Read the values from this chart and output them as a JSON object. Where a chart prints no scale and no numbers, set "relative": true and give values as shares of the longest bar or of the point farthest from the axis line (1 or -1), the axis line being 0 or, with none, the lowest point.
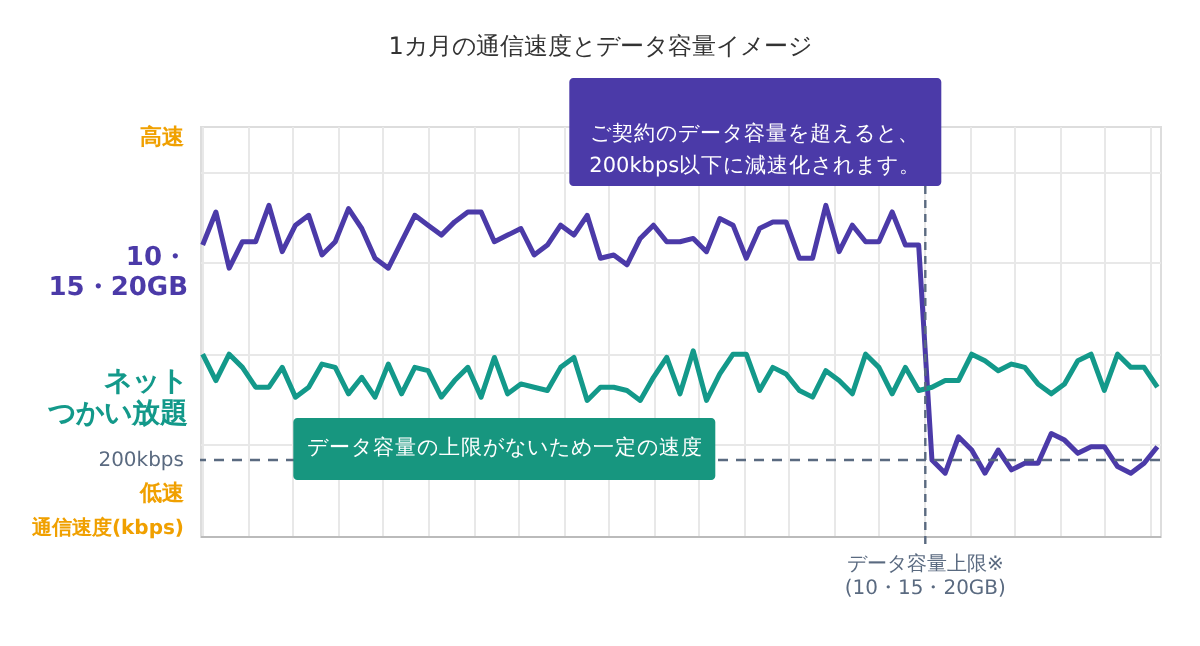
{
  "chart_data": {
    "type": "line",
    "relative": true,
    "title": "1カ月の通信速度とデータ容量イメージ",
    "ylabel": "通信速度(kbps)",
    "categories": [
      null,
      null,
      null,
      null,
      null,
      null,
      null,
      null,
      null,
      null,
      null,
      null,
      null,
      null,
      null,
      null,
      null,
      null,
      null,
      null,
      null,
      null,
      null,
      null,
      null,
      null,
      null,
      null,
      null,
      null,
      null,
      null,
      null,
      null,
      null,
      null,
      null,
      null,
      null,
      null,
      null,
      null,
      null,
      null,
      null,
      null,
      null,
      null,
      null,
      null,
      null,
      null,
      null,
      null,
      null,
      null,
      null,
      null,
      null,
      null,
      null,
      null,
      null,
      null,
      null,
      null,
      null,
      null,
      null,
      null,
      null,
      null,
      null
    ],
    "series": [
      {
        "name": "10・15・20GB",
        "color": "#4b3aa8",
        "values": [
          0.88,
          0.98,
          0.81,
          0.89,
          0.89,
          1.0,
          0.86,
          0.94,
          0.97,
          0.85,
          0.89,
          0.99,
          0.93,
          0.84,
          0.81,
          0.89,
          0.97,
          0.94,
          0.91,
          0.95,
          0.98,
          0.98,
          0.89,
          0.91,
          0.93,
          0.85,
          0.88,
          0.94,
          0.91,
          0.97,
          0.84,
          0.85,
          0.82,
          0.9,
          0.94,
          0.89,
          0.89,
          0.9,
          0.86,
          0.96,
          0.94,
          0.84,
          0.93,
          0.95,
          0.95,
          0.84,
          0.84,
          1.0,
          0.86,
          0.94,
          0.89,
          0.89,
          0.98,
          0.88,
          0.88,
          0.23,
          0.19,
          0.3,
          0.26,
          0.19,
          0.26,
          0.2,
          0.22,
          0.22,
          0.31,
          0.29,
          0.25,
          0.27,
          0.27,
          0.21,
          0.19,
          0.22,
          0.27
        ]
      },
      {
        "name": "ネットつかい放題",
        "color": "#13998a",
        "values": [
          0.55,
          0.47,
          0.55,
          0.51,
          0.45,
          0.45,
          0.51,
          0.42,
          0.45,
          0.52,
          0.51,
          0.43,
          0.48,
          0.42,
          0.52,
          0.43,
          0.51,
          0.5,
          0.42,
          0.47,
          0.51,
          0.42,
          0.54,
          0.43,
          0.46,
          0.45,
          0.44,
          0.51,
          0.54,
          0.41,
          0.45,
          0.45,
          0.44,
          0.41,
          0.48,
          0.54,
          0.43,
          0.56,
          0.41,
          0.49,
          0.55,
          0.55,
          0.44,
          0.51,
          0.49,
          0.44,
          0.42,
          0.5,
          0.47,
          0.43,
          0.55,
          0.51,
          0.43,
          0.51,
          0.44,
          0.45,
          0.47,
          0.47,
          0.55,
          0.53,
          0.5,
          0.52,
          0.51,
          0.46,
          0.43,
          0.46,
          0.53,
          0.55,
          0.44,
          0.55,
          0.51,
          0.51,
          0.45
        ]
      }
    ],
    "ref_lines": [
      {
        "axis": "y",
        "value": 0.23,
        "label": "200kbps",
        "color": "#5a6a80",
        "line_style": "dashed"
      }
    ],
    "annotations": [
      "高速",
      "低速",
      "ご契約のデータ容量を超えると、\n200kbps以下に減速化されます。",
      "データ容量の上限がないため一定の速度",
      "データ容量上限※\n(10・15・20GB)"
    ],
    "grid": true,
    "legend": false,
    "marker": "none",
    "line_style": "solid"
  }
}
